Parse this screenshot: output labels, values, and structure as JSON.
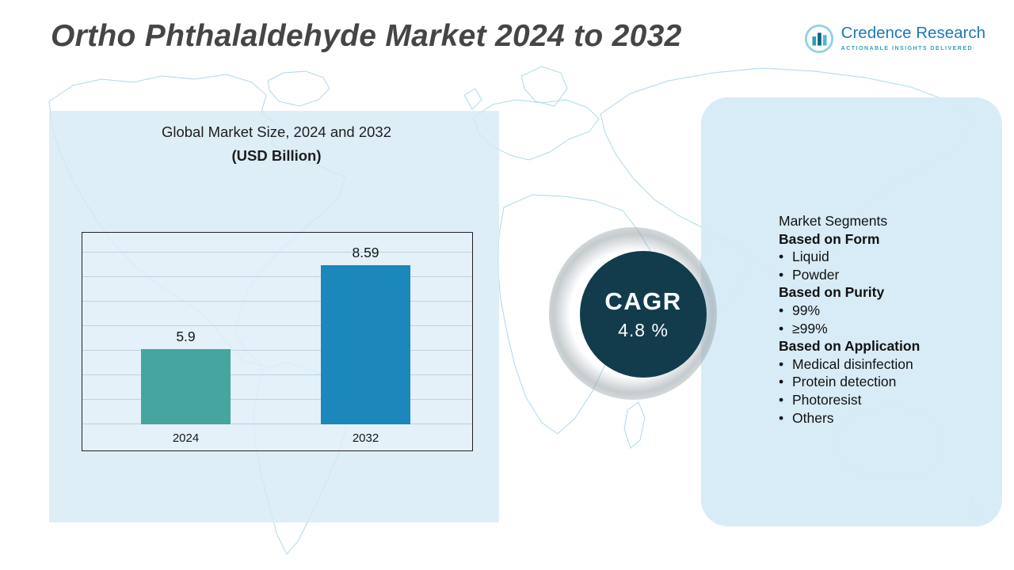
{
  "header": {
    "title": "Ortho Phthalaldehyde Market 2024 to 2032"
  },
  "logo": {
    "name": "Credence Research",
    "tagline": "ACTIONABLE INSIGHTS DELIVERED"
  },
  "chart_panel": {
    "heading": "Global Market Size, 2024 and 2032",
    "subheading": "(USD Billion)"
  },
  "chart_data": {
    "type": "bar",
    "title": "Global Market Size, 2024 and 2032",
    "unit": "USD Billion",
    "categories": [
      "2024",
      "2032"
    ],
    "values": [
      5.9,
      8.59
    ],
    "value_labels": [
      "5.9",
      "8.59"
    ],
    "bar_colors": [
      "#46a59e",
      "#1b87ba"
    ],
    "grid": true,
    "gridlines": "horizontal",
    "ylim": [
      3.5,
      9.6
    ],
    "legend_position": "none"
  },
  "cagr": {
    "label": "CAGR",
    "value": "4.8 %"
  },
  "segments": {
    "title": "Market Segments",
    "groups": [
      {
        "heading": "Based on Form",
        "items": [
          "Liquid",
          "Powder"
        ]
      },
      {
        "heading": "Based on Purity",
        "items": [
          "99%",
          "≥99%"
        ]
      },
      {
        "heading": "Based on Application",
        "items": [
          "Medical disinfection",
          "Protein detection",
          "Photoresist",
          "Others"
        ]
      }
    ]
  }
}
